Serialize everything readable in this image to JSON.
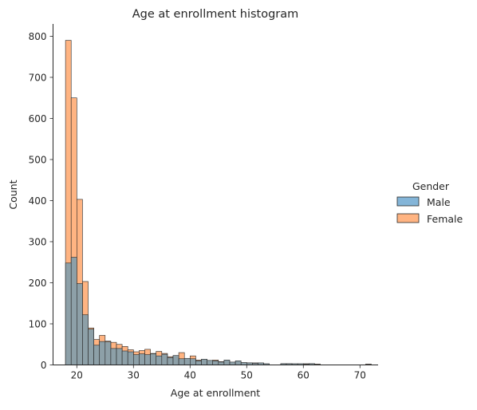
{
  "chart_data": {
    "type": "bar",
    "subtype": "histogram-overlay",
    "title": "Age at enrollment histogram",
    "xlabel": "Age at enrollment",
    "ylabel": "Count",
    "xlim": [
      15.8,
      73.2
    ],
    "ylim": [
      0,
      830
    ],
    "xticks": [
      "20",
      "30",
      "40",
      "50",
      "60",
      "70"
    ],
    "yticks": [
      "0",
      "100",
      "200",
      "300",
      "400",
      "500",
      "600",
      "700",
      "800"
    ],
    "grid": false,
    "legend": {
      "title": "Gender",
      "placement": "right"
    },
    "bins": {
      "start": 17,
      "width": 1
    },
    "series": [
      {
        "name": "Female",
        "color": "#ffb482",
        "values": [
          0,
          790,
          650,
          403,
          203,
          90,
          62,
          72,
          58,
          55,
          50,
          45,
          37,
          32,
          35,
          38,
          28,
          33,
          28,
          20,
          22,
          30,
          10,
          22,
          12,
          14,
          8,
          12,
          8,
          9,
          6,
          8,
          5,
          5,
          5,
          4,
          2,
          0,
          0,
          3,
          3,
          2,
          2,
          3,
          3,
          2,
          0,
          0,
          0,
          0,
          0,
          0,
          0,
          0,
          2
        ]
      },
      {
        "name": "Male",
        "color": "#8da0a8",
        "values": [
          0,
          248,
          262,
          198,
          122,
          87,
          48,
          57,
          56,
          40,
          40,
          34,
          32,
          25,
          27,
          25,
          27,
          22,
          26,
          18,
          23,
          15,
          16,
          15,
          10,
          14,
          11,
          10,
          7,
          12,
          7,
          10,
          6,
          5,
          4,
          5,
          3,
          0,
          0,
          3,
          3,
          3,
          3,
          2,
          3,
          1,
          0,
          0,
          0,
          0,
          0,
          0,
          0,
          0,
          1
        ]
      }
    ],
    "legend_entries": [
      {
        "label": "Male",
        "color": "#84b5d8"
      },
      {
        "label": "Female",
        "color": "#ffb482"
      }
    ]
  }
}
